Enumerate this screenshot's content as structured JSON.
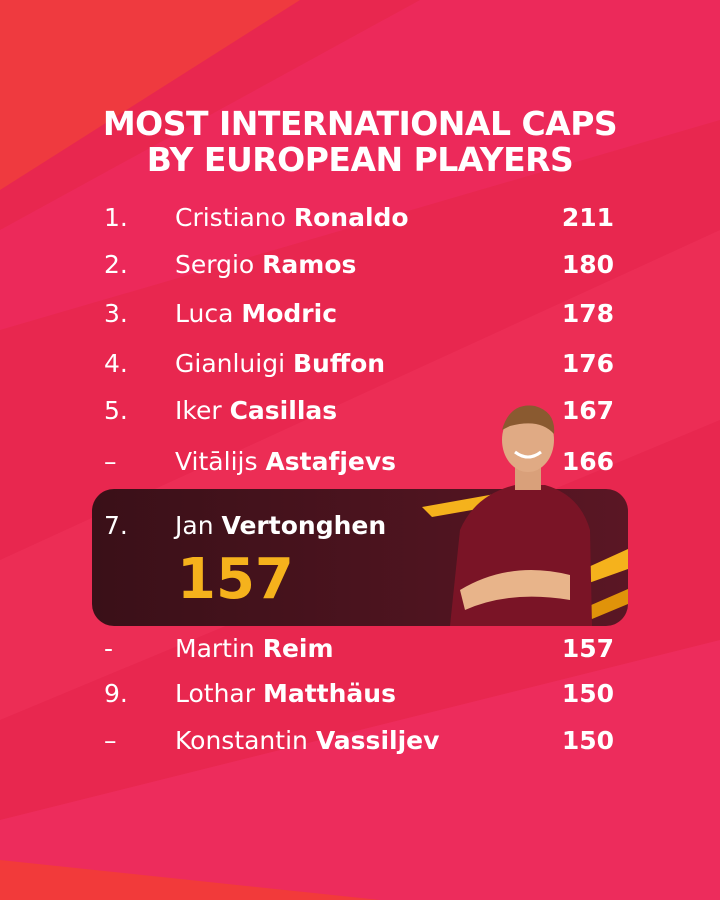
{
  "title": [
    "MOST INTERNATIONAL CAPS",
    "BY EUROPEAN PLAYERS"
  ],
  "rows": [
    {
      "rank": "1.",
      "first": "Cristiano",
      "last": "Ronaldo",
      "caps": 211
    },
    {
      "rank": "2.",
      "first": "Sergio",
      "last": "Ramos",
      "caps": 180
    },
    {
      "rank": "3.",
      "first": "Luca",
      "last": "Modric",
      "caps": 178
    },
    {
      "rank": "4.",
      "first": "Gianluigi",
      "last": "Buffon",
      "caps": 176
    },
    {
      "rank": "5.",
      "first": "Iker",
      "last": "Casillas",
      "caps": 167
    },
    {
      "rank": "–",
      "first": "Vitālijs",
      "last": "Astafjevs",
      "caps": 166
    },
    {
      "rank": "-",
      "first": "Martin",
      "last": "Reim",
      "caps": 157
    },
    {
      "rank": "9.",
      "first": "Lothar",
      "last": "Matthäus",
      "caps": 150
    },
    {
      "rank": "–",
      "first": "Konstantin",
      "last": "Vassiljev",
      "caps": 150
    }
  ],
  "highlight": {
    "rank": "7.",
    "first": "Jan",
    "last": "Vertonghen",
    "caps": 157
  }
}
